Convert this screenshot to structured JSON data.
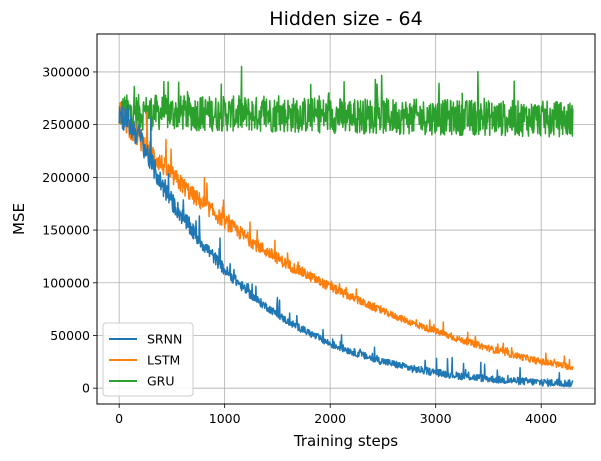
{
  "chart_data": {
    "type": "line",
    "title": "Hidden size - 64",
    "xlabel": "Training steps",
    "ylabel": "MSE",
    "xlim": [
      -210,
      4510
    ],
    "ylim": [
      -15000,
      336000
    ],
    "x_ticks": [
      0,
      1000,
      2000,
      3000,
      4000
    ],
    "y_ticks": [
      0,
      50000,
      100000,
      150000,
      200000,
      250000,
      300000
    ],
    "grid": true,
    "legend_position": "lower-left",
    "series": [
      {
        "name": "SRNN",
        "color": "#1f77b4",
        "x": [
          0,
          100,
          200,
          300,
          400,
          500,
          700,
          1000,
          1300,
          1600,
          2000,
          2400,
          2800,
          3200,
          3600,
          4000,
          4300
        ],
        "values": [
          262000,
          250000,
          238000,
          215000,
          194000,
          177000,
          148000,
          112000,
          84000,
          63000,
          42000,
          28000,
          18000,
          12000,
          8000,
          5500,
          4500
        ],
        "band": 10000,
        "spike_rate": 0.04,
        "spike_height": 35000
      },
      {
        "name": "LSTM",
        "color": "#ff7f0e",
        "x": [
          0,
          100,
          200,
          300,
          500,
          700,
          1000,
          1300,
          1600,
          2000,
          2400,
          2800,
          3200,
          3600,
          4000,
          4300
        ],
        "values": [
          262000,
          248000,
          236000,
          224000,
          202000,
          183000,
          158000,
          136000,
          117000,
          96000,
          77000,
          61000,
          47000,
          35000,
          25000,
          20000
        ],
        "band": 9000,
        "spike_rate": 0.04,
        "spike_height": 28000
      },
      {
        "name": "GRU",
        "color": "#2ca02c",
        "x": [
          0,
          4300
        ],
        "values": [
          262000,
          255000
        ],
        "band": 17000,
        "spike_rate": 0.05,
        "spike_height": 32000
      }
    ]
  }
}
